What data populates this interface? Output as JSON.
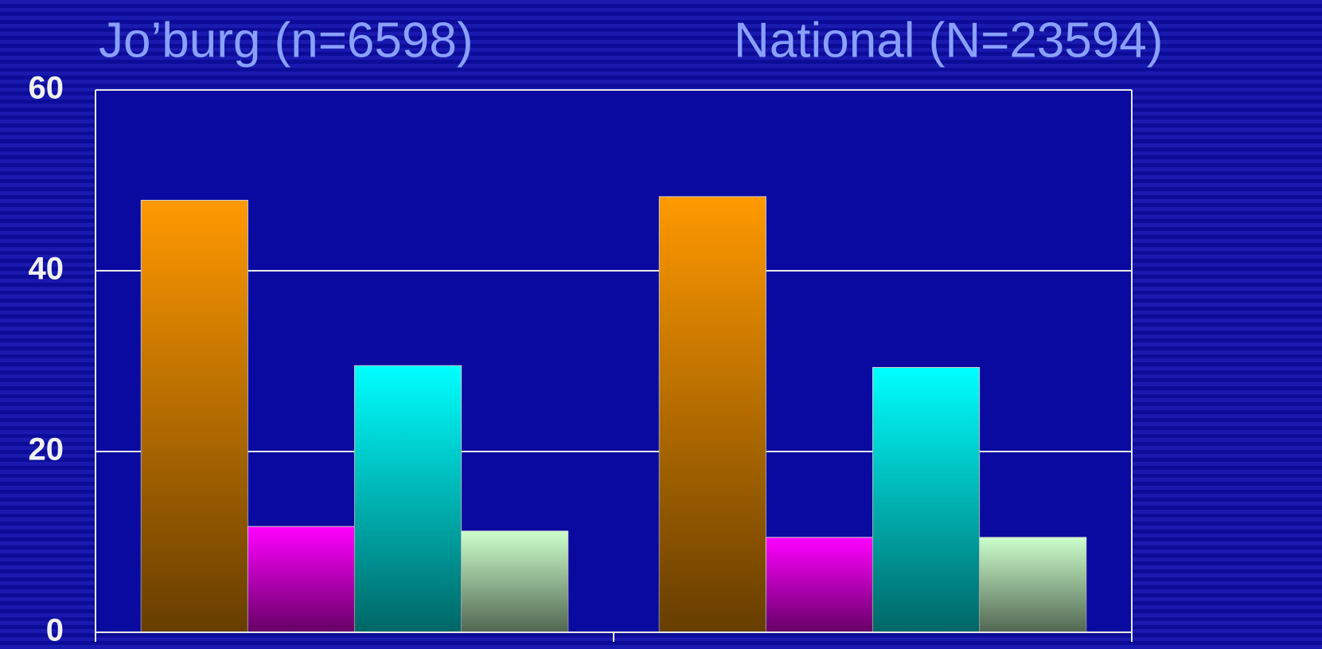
{
  "chart_data": {
    "type": "bar",
    "categories": [
      "Jo’burg (n=6598)",
      "National (N=23594)"
    ],
    "series": [
      {
        "color": "#ff9900",
        "values": [
          47.8,
          48.2
        ]
      },
      {
        "color": "#ff00ff",
        "values": [
          11.7,
          10.5
        ]
      },
      {
        "color": "#00ffff",
        "values": [
          29.5,
          29.3
        ]
      },
      {
        "color": "#ccffcc",
        "values": [
          11.2,
          10.5
        ]
      }
    ],
    "ylim": [
      0,
      60
    ],
    "yticks": [
      0,
      20,
      40,
      60
    ],
    "grid": true
  }
}
